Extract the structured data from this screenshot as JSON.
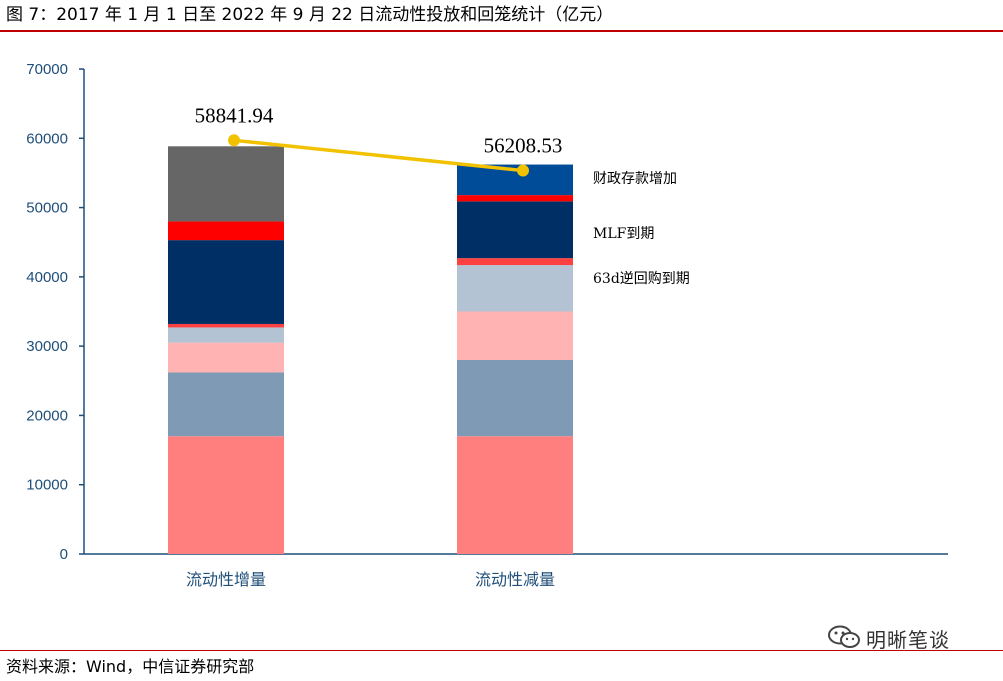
{
  "figure": {
    "title": "图 7：2017 年 1 月 1 日至 2022 年 9 月 22 日流动性投放和回笼统计（亿元）",
    "source": "资料来源：Wind，中信证券研究部",
    "watermark": "明晰笔谈"
  },
  "chart_data": {
    "type": "bar",
    "stacked": true,
    "title": "",
    "xlabel": "",
    "ylabel": "",
    "ylim": [
      0,
      70000
    ],
    "yticks": [
      0,
      10000,
      20000,
      30000,
      40000,
      50000,
      60000,
      70000
    ],
    "grid": false,
    "categories": [
      "流动性增量",
      "流动性减量"
    ],
    "segments": [
      {
        "values": [
          17000,
          17000
        ],
        "color": "#ff7f7f"
      },
      {
        "values": [
          9200,
          11000
        ],
        "color": "#7f9ab5"
      },
      {
        "values": [
          4300,
          7000
        ],
        "color": "#ffb3b3"
      },
      {
        "values": [
          2200,
          6700
        ],
        "color": "#b3c3d3"
      },
      {
        "values": [
          500,
          1000
        ],
        "color": "#ff4040"
      },
      {
        "values": [
          12100,
          8200
        ],
        "color": "#002f66"
      },
      {
        "values": [
          2700,
          900
        ],
        "color": "#ff0000"
      },
      {
        "values": [
          10841.94,
          4408.53
        ],
        "color": "#666666 / #004c99"
      }
    ],
    "segment_colors": [
      [
        "#ff7f7f",
        "#ff7f7f"
      ],
      [
        "#7f9ab5",
        "#7f9ab5"
      ],
      [
        "#ffb3b3",
        "#ffb3b3"
      ],
      [
        "#b3c3d3",
        "#b3c3d3"
      ],
      [
        "#ff4040",
        "#ff4040"
      ],
      [
        "#002f66",
        "#002f66"
      ],
      [
        "#ff0000",
        "#ff0000"
      ],
      [
        "#666666",
        "#004c99"
      ]
    ],
    "totals": [
      58841.94,
      56208.53
    ],
    "total_labels": [
      "58841.94",
      "56208.53"
    ],
    "total_line_color": "#f2c200",
    "annotations": [
      {
        "text": "财政存款增加",
        "y": 54300
      },
      {
        "text": "MLF到期",
        "y": 46300
      },
      {
        "text": "63d逆回购到期",
        "y": 39800
      }
    ],
    "colors": {
      "axis": "#1f4e79",
      "accent": "#c00000"
    }
  }
}
